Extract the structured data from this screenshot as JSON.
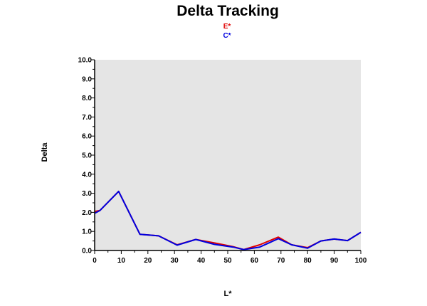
{
  "chart_data": {
    "type": "line",
    "title": "Delta Tracking",
    "xlabel": "L*",
    "ylabel": "Delta",
    "xlim": [
      0,
      100
    ],
    "ylim": [
      0,
      10
    ],
    "x_ticks": [
      "0",
      "10",
      "20",
      "30",
      "40",
      "50",
      "60",
      "70",
      "80",
      "90",
      "100"
    ],
    "y_ticks": [
      "0.0",
      "1.0",
      "2.0",
      "3.0",
      "4.0",
      "5.0",
      "6.0",
      "7.0",
      "8.0",
      "9.0",
      "10.0"
    ],
    "grid": false,
    "legend_position": "top-center",
    "plot_background": "#e5e5e5",
    "series": [
      {
        "name": "E*",
        "color": "#e00000",
        "x": [
          0,
          2,
          9,
          17,
          24,
          31,
          38,
          45,
          52,
          56,
          62,
          69,
          74,
          80,
          85,
          90,
          95,
          100
        ],
        "y": [
          2.05,
          2.1,
          3.1,
          0.85,
          0.77,
          0.3,
          0.58,
          0.4,
          0.2,
          0.05,
          0.3,
          0.7,
          0.3,
          0.15,
          0.5,
          0.6,
          0.52,
          0.95
        ]
      },
      {
        "name": "C*",
        "color": "#0000e0",
        "x": [
          0,
          2,
          9,
          17,
          24,
          31,
          38,
          45,
          52,
          56,
          62,
          69,
          74,
          80,
          85,
          90,
          95,
          100
        ],
        "y": [
          1.95,
          2.1,
          3.1,
          0.85,
          0.77,
          0.28,
          0.58,
          0.32,
          0.18,
          0.05,
          0.18,
          0.62,
          0.3,
          0.12,
          0.5,
          0.6,
          0.52,
          0.95
        ]
      }
    ]
  }
}
